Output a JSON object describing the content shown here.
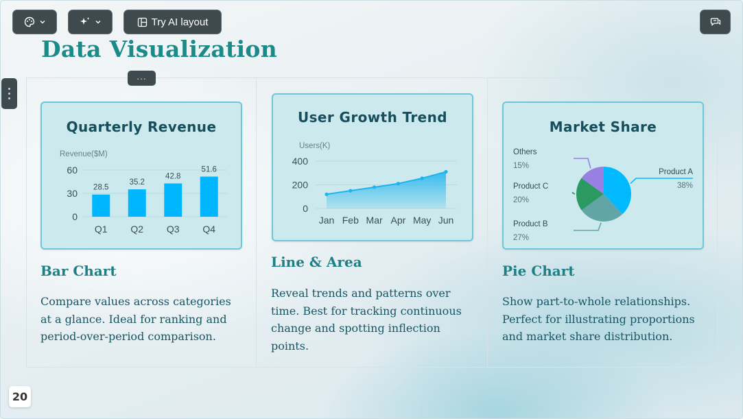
{
  "toolbar": {
    "theme_icon": "palette-icon",
    "magic_icon": "sparkles-icon",
    "try_ai_label": "Try AI layout",
    "try_ai_icon": "layout-icon",
    "comment_icon": "comment-icon"
  },
  "slide": {
    "title": "Data Visualization",
    "page_number": "20",
    "drag_handle": "...",
    "accent_color": "#1d8a8a"
  },
  "columns": [
    {
      "heading": "Bar Chart",
      "description": "Compare values across categories at a glance. Ideal for ranking and period-over-period comparison."
    },
    {
      "heading": "Line & Area",
      "description": "Reveal trends and patterns over time. Best for tracking continuous change and spotting inflection points."
    },
    {
      "heading": "Pie Chart",
      "description": "Show part-to-whole relationships. Perfect for illustrating proportions and market share distribution."
    }
  ],
  "chart_data": [
    {
      "type": "bar",
      "title": "Quarterly Revenue",
      "ylabel": "Revenue($M)",
      "categories": [
        "Q1",
        "Q2",
        "Q3",
        "Q4"
      ],
      "values": [
        28.5,
        35.2,
        42.8,
        51.6
      ],
      "value_labels": [
        "28.5",
        "35.2",
        "42.8",
        "51.6"
      ],
      "yticks": [
        "0",
        "30",
        "60"
      ],
      "ylim": [
        0,
        60
      ],
      "color": "#00b7ff"
    },
    {
      "type": "area",
      "title": "User Growth Trend",
      "ylabel": "Users(K)",
      "categories": [
        "Jan",
        "Feb",
        "Mar",
        "Apr",
        "May",
        "Jun"
      ],
      "values": [
        120,
        150,
        180,
        210,
        255,
        310
      ],
      "yticks": [
        "0",
        "200",
        "400"
      ],
      "ylim": [
        0,
        400
      ],
      "color": "#1cb4ee"
    },
    {
      "type": "pie",
      "title": "Market Share",
      "slices": [
        {
          "label": "Product A",
          "pct_label": "38%",
          "value": 38,
          "color": "#00b9ff"
        },
        {
          "label": "Product B",
          "pct_label": "27%",
          "value": 27,
          "color": "#62a5a6"
        },
        {
          "label": "Product C",
          "pct_label": "20%",
          "value": 20,
          "color": "#2a9a62"
        },
        {
          "label": "Others",
          "pct_label": "15%",
          "value": 15,
          "color": "#9a7fe3"
        }
      ]
    }
  ]
}
